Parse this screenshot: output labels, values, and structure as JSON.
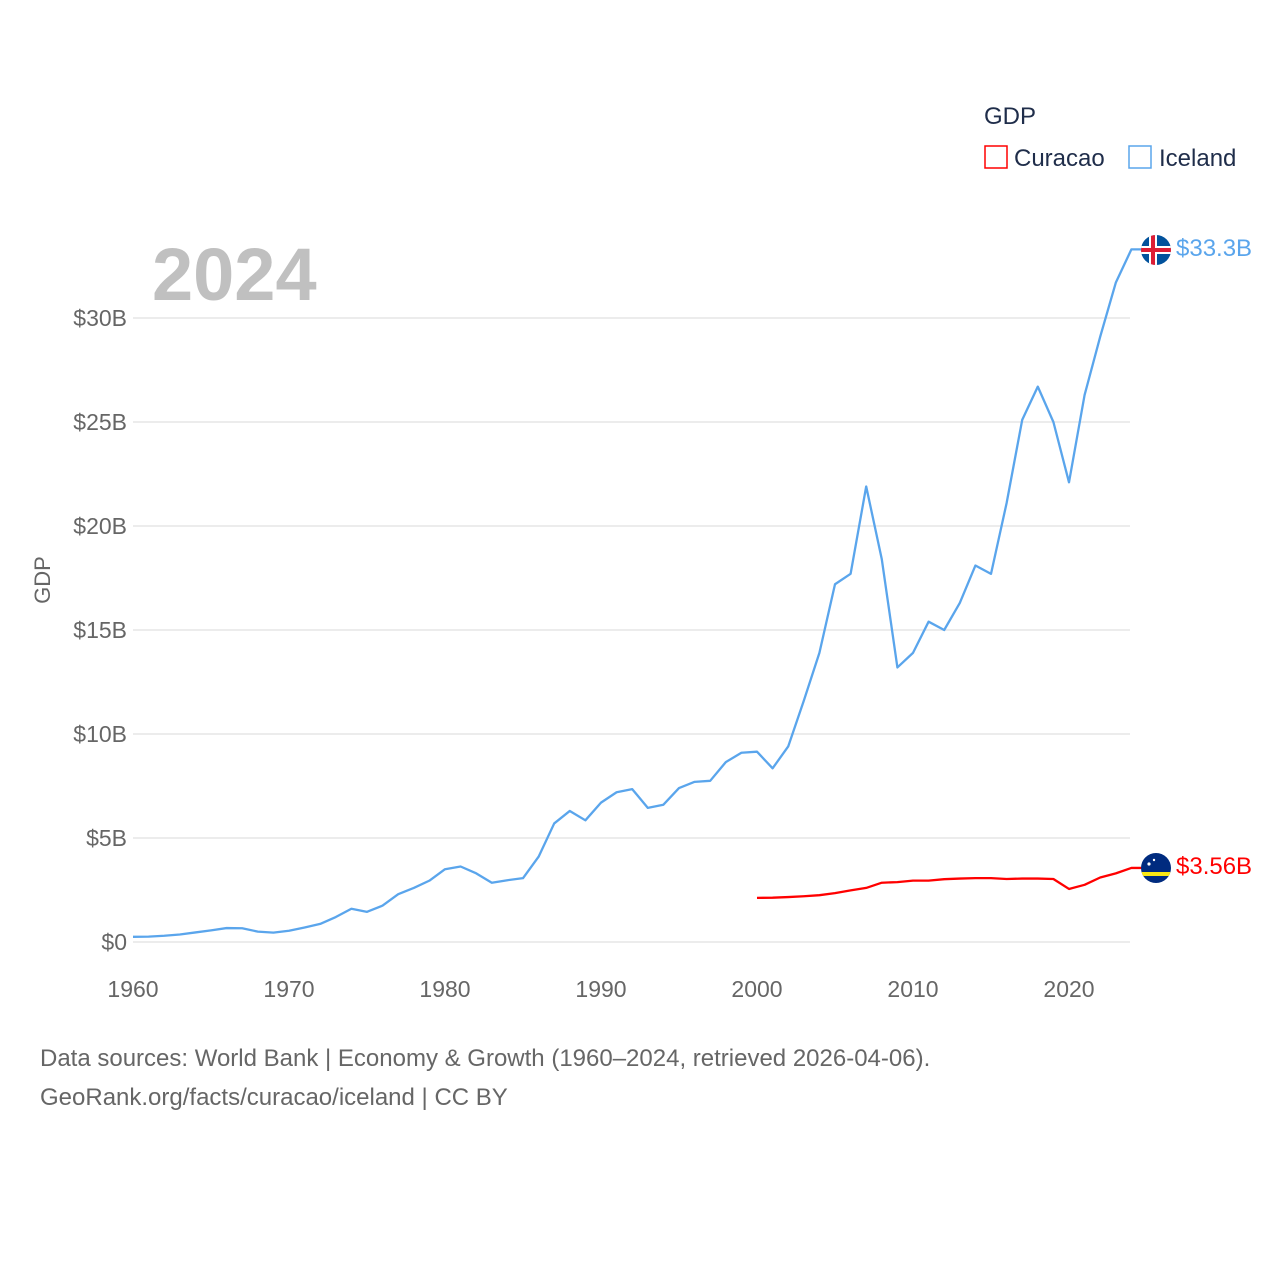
{
  "chart_data": {
    "type": "line",
    "title": "GDP",
    "year_label": "2024",
    "xlabel": "",
    "ylabel": "GDP",
    "xlim": [
      1960,
      2024
    ],
    "ylim": [
      0,
      33.3
    ],
    "x_ticks": [
      1960,
      1970,
      1980,
      1990,
      2000,
      2010,
      2020
    ],
    "x_tick_labels": [
      "1960",
      "1970",
      "1980",
      "1990",
      "2000",
      "2010",
      "2020"
    ],
    "y_ticks": [
      0,
      5,
      10,
      15,
      20,
      25,
      30
    ],
    "y_tick_labels": [
      "$0",
      "$5B",
      "$10B",
      "$15B",
      "$20B",
      "$25B",
      "$30B"
    ],
    "grid": true,
    "legend_position": "top-right",
    "series": [
      {
        "name": "Curacao",
        "color": "#ff0000",
        "end_label": "$3.56B",
        "start_year": 2000,
        "values": [
          2.12,
          2.13,
          2.16,
          2.2,
          2.25,
          2.35,
          2.48,
          2.6,
          2.85,
          2.88,
          2.95,
          2.95,
          3.02,
          3.05,
          3.07,
          3.07,
          3.03,
          3.05,
          3.05,
          3.03,
          2.55,
          2.75,
          3.1,
          3.3,
          3.56
        ]
      },
      {
        "name": "Iceland",
        "color": "#5aa5ec",
        "end_label": "$33.3B",
        "start_year": 1960,
        "values": [
          0.25,
          0.26,
          0.3,
          0.36,
          0.46,
          0.56,
          0.67,
          0.66,
          0.5,
          0.45,
          0.54,
          0.7,
          0.87,
          1.2,
          1.6,
          1.45,
          1.75,
          2.3,
          2.6,
          2.95,
          3.5,
          3.63,
          3.3,
          2.85,
          2.97,
          3.07,
          4.1,
          5.7,
          6.3,
          5.85,
          6.7,
          7.2,
          7.35,
          6.45,
          6.6,
          7.4,
          7.7,
          7.75,
          8.65,
          9.1,
          9.15,
          8.35,
          9.4,
          11.6,
          13.9,
          17.2,
          17.7,
          21.9,
          18.4,
          13.2,
          13.9,
          15.4,
          15.0,
          16.3,
          18.1,
          17.7,
          21.1,
          25.1,
          26.7,
          25.0,
          22.1,
          26.3,
          29.1,
          31.7,
          33.3
        ]
      }
    ]
  },
  "footer": {
    "line1": "Data sources: World Bank | Economy & Growth (1960–2024, retrieved 2026-04-06).",
    "line2": "GeoRank.org/facts/curacao/iceland | CC BY"
  }
}
